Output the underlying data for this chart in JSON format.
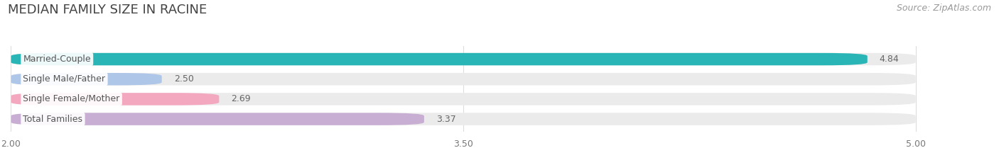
{
  "title": "MEDIAN FAMILY SIZE IN RACINE",
  "source": "Source: ZipAtlas.com",
  "categories": [
    "Married-Couple",
    "Single Male/Father",
    "Single Female/Mother",
    "Total Families"
  ],
  "values": [
    4.84,
    2.5,
    2.69,
    3.37
  ],
  "bar_colors": [
    "#29b5b5",
    "#aec6e8",
    "#f4a8c0",
    "#c9aed4"
  ],
  "bar_bg_color": "#ebebeb",
  "xmin": 2.0,
  "xmax": 5.0,
  "xticks": [
    2.0,
    3.5,
    5.0
  ],
  "xtick_labels": [
    "2.00",
    "3.50",
    "5.00"
  ],
  "bar_height": 0.62,
  "figsize": [
    14.06,
    2.33
  ],
  "dpi": 100,
  "value_label_color": "#666666",
  "title_fontsize": 13,
  "source_fontsize": 9,
  "bar_label_fontsize": 9,
  "value_fontsize": 9,
  "tick_fontsize": 9,
  "background_color": "#ffffff",
  "grid_color": "#dddddd",
  "label_text_color": "#555555"
}
